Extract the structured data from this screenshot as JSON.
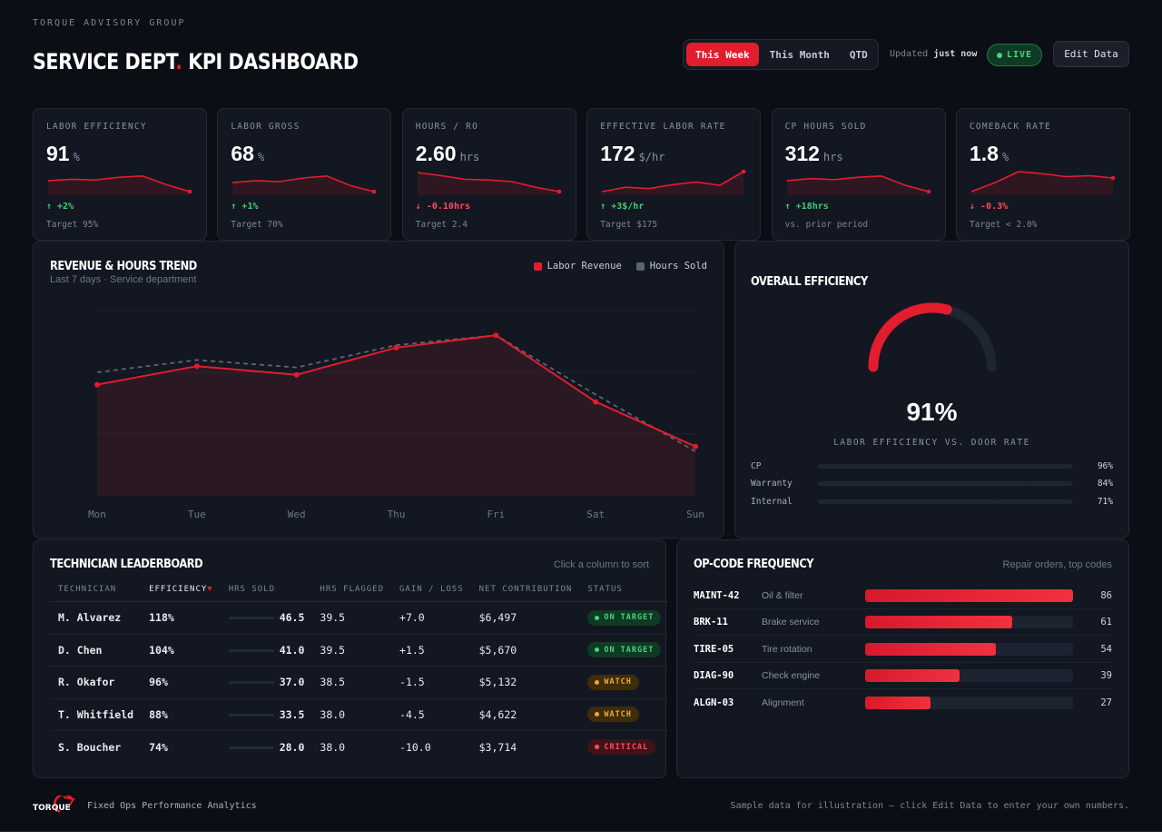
{
  "header": {
    "org": "TORQUE ADVISORY GROUP",
    "title_main": "SERVICE DEPT",
    "title_dot": ".",
    "title_rest": " KPI DASHBOARD",
    "periods": [
      "This Week",
      "This Month",
      "QTD"
    ],
    "active_period": "This Week",
    "updated_prefix": "Updated",
    "updated_value": "just now",
    "live_label": "LIVE",
    "edit_label": "Edit Data"
  },
  "kpis": [
    {
      "label": "LABOR EFFICIENCY",
      "value": "91",
      "unit": "%",
      "delta": "↑ +2%",
      "direction": "up",
      "target": "Target 95%",
      "trend": [
        0.55,
        0.62,
        0.58,
        0.72,
        0.78,
        0.35,
        0.0
      ]
    },
    {
      "label": "LABOR GROSS",
      "value": "68",
      "unit": "%",
      "delta": "↑ +1%",
      "direction": "up",
      "target": "Target 70%",
      "trend": [
        0.45,
        0.55,
        0.5,
        0.68,
        0.78,
        0.3,
        0.0
      ]
    },
    {
      "label": "HOURS / RO",
      "value": "2.60",
      "unit": "hrs",
      "delta": "↓ -0.10hrs",
      "direction": "down",
      "target": "Target 2.4",
      "trend": [
        0.95,
        0.8,
        0.62,
        0.58,
        0.5,
        0.22,
        0.0
      ]
    },
    {
      "label": "EFFECTIVE LABOR RATE",
      "value": "172",
      "unit": "$/hr",
      "delta": "↑ +3$/hr",
      "direction": "up",
      "target": "Target $175",
      "trend": [
        0.0,
        0.22,
        0.15,
        0.35,
        0.48,
        0.32,
        1.0
      ]
    },
    {
      "label": "CP HOURS SOLD",
      "value": "312",
      "unit": "hrs",
      "delta": "↑ +18hrs",
      "direction": "up",
      "target": "vs. prior period",
      "trend": [
        0.55,
        0.65,
        0.6,
        0.72,
        0.78,
        0.32,
        0.0
      ]
    },
    {
      "label": "COMEBACK RATE",
      "value": "1.8",
      "unit": "%",
      "delta": "↓ -0.3%",
      "direction": "down",
      "target": "Target < 2.0%",
      "trend": [
        0.0,
        0.45,
        1.0,
        0.9,
        0.75,
        0.8,
        0.68
      ]
    }
  ],
  "trend_panel": {
    "title": "REVENUE & HOURS TREND",
    "subtitle": "Last 7 days · Service department",
    "legend": [
      {
        "label": "Labor Revenue",
        "color": "#e11d2e"
      },
      {
        "label": "Hours Sold",
        "color": "#5c6473"
      }
    ]
  },
  "chart_data": {
    "type": "line",
    "x": [
      "Mon",
      "Tue",
      "Wed",
      "Thu",
      "Fri",
      "Sat",
      "Sun"
    ],
    "series": [
      {
        "name": "Labor Revenue",
        "values": [
          0.6,
          0.75,
          0.68,
          0.9,
          1.0,
          0.46,
          0.1
        ],
        "style": "solid-area"
      },
      {
        "name": "Hours Sold",
        "values": [
          0.7,
          0.8,
          0.74,
          0.92,
          1.0,
          0.52,
          0.06
        ],
        "style": "dashed"
      }
    ],
    "ylim": [
      -0.3,
      1.2
    ],
    "grid": true
  },
  "efficiency": {
    "title": "OVERALL EFFICIENCY",
    "value": "91%",
    "gauge_fraction": 0.58,
    "caption": "LABOR EFFICIENCY VS. DOOR RATE",
    "rows": [
      {
        "label": "CP",
        "pct": "96%",
        "fraction": 0.96
      },
      {
        "label": "Warranty",
        "pct": "84%",
        "fraction": 0.84
      },
      {
        "label": "Internal",
        "pct": "71%",
        "fraction": 0.71
      }
    ]
  },
  "leaderboard": {
    "title": "TECHNICIAN LEADERBOARD",
    "hint": "Click a column to sort",
    "columns": [
      "TECHNICIAN",
      "EFFICIENCY",
      "HRS SOLD",
      "HRS FLAGGED",
      "GAIN / LOSS",
      "NET CONTRIBUTION",
      "STATUS"
    ],
    "sort_arrow": "▼",
    "rows": [
      {
        "name": "M. Alvarez",
        "efficiency": "118%",
        "hrs_sold": "46.5",
        "hrs_flagged": "39.5",
        "gain": "+7.0",
        "gain_dir": "pos",
        "net": "$6,497",
        "status": "ON TARGET",
        "status_kind": "on"
      },
      {
        "name": "D. Chen",
        "efficiency": "104%",
        "hrs_sold": "41.0",
        "hrs_flagged": "39.5",
        "gain": "+1.5",
        "gain_dir": "pos",
        "net": "$5,670",
        "status": "ON TARGET",
        "status_kind": "on"
      },
      {
        "name": "R. Okafor",
        "efficiency": "96%",
        "hrs_sold": "37.0",
        "hrs_flagged": "38.5",
        "gain": "-1.5",
        "gain_dir": "neg",
        "net": "$5,132",
        "status": "WATCH",
        "status_kind": "watch"
      },
      {
        "name": "T. Whitfield",
        "efficiency": "88%",
        "hrs_sold": "33.5",
        "hrs_flagged": "38.0",
        "gain": "-4.5",
        "gain_dir": "neg",
        "net": "$4,622",
        "status": "WATCH",
        "status_kind": "watch"
      },
      {
        "name": "S. Boucher",
        "efficiency": "74%",
        "hrs_sold": "28.0",
        "hrs_flagged": "38.0",
        "gain": "-10.0",
        "gain_dir": "neg",
        "net": "$3,714",
        "status": "CRITICAL",
        "status_kind": "crit"
      }
    ]
  },
  "opcodes": {
    "title": "OP-CODE FREQUENCY",
    "hint": "Repair orders, top codes",
    "max": 86,
    "rows": [
      {
        "code": "MAINT-42",
        "desc": "Oil & filter",
        "count": 86
      },
      {
        "code": "BRK-11",
        "desc": "Brake service",
        "count": 61
      },
      {
        "code": "TIRE-05",
        "desc": "Tire rotation",
        "count": 54
      },
      {
        "code": "DIAG-90",
        "desc": "Check engine",
        "count": 39
      },
      {
        "code": "ALGN-03",
        "desc": "Alignment",
        "count": 27
      }
    ]
  },
  "footer": {
    "logo_text": "TORQUE",
    "tagline": "Fixed Ops Performance Analytics",
    "note": "Sample data for illustration — click Edit Data to enter your own numbers."
  },
  "colors": {
    "accent": "#e11d2e",
    "positive": "#3fcf75",
    "negative": "#ff4d5e",
    "warning": "#f0a830",
    "muted_line": "#5c6473"
  }
}
